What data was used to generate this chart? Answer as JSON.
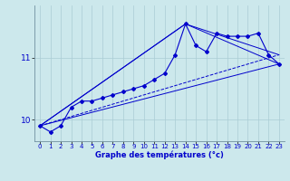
{
  "xlabel": "Graphe des températures (°c)",
  "background_color": "#cce8ec",
  "grid_color": "#aaccd4",
  "line_color": "#0000cc",
  "hours": [
    0,
    1,
    2,
    3,
    4,
    5,
    6,
    7,
    8,
    9,
    10,
    11,
    12,
    13,
    14,
    15,
    16,
    17,
    18,
    19,
    20,
    21,
    22,
    23
  ],
  "temp_main": [
    9.9,
    9.8,
    9.9,
    10.2,
    10.3,
    10.3,
    10.35,
    10.4,
    10.45,
    10.5,
    10.55,
    10.65,
    10.75,
    11.05,
    11.55,
    11.2,
    11.1,
    11.4,
    11.35,
    11.35,
    11.35,
    11.4,
    11.05,
    10.9
  ],
  "line1_x": [
    0,
    23
  ],
  "line1_y": [
    9.9,
    10.9
  ],
  "line2_x": [
    0,
    14,
    23
  ],
  "line2_y": [
    9.9,
    11.55,
    10.9
  ],
  "line3_x": [
    0,
    14,
    23
  ],
  "line3_y": [
    9.9,
    11.55,
    11.05
  ],
  "line4_x": [
    0,
    23
  ],
  "line4_y": [
    9.9,
    11.05
  ],
  "ylim": [
    9.65,
    11.85
  ],
  "yticks": [
    10.0,
    11.0
  ],
  "ytick_labels": [
    "10",
    "11"
  ],
  "xlim": [
    -0.5,
    23.5
  ],
  "xticks": [
    0,
    1,
    2,
    3,
    4,
    5,
    6,
    7,
    8,
    9,
    10,
    11,
    12,
    13,
    14,
    15,
    16,
    17,
    18,
    19,
    20,
    21,
    22,
    23
  ]
}
